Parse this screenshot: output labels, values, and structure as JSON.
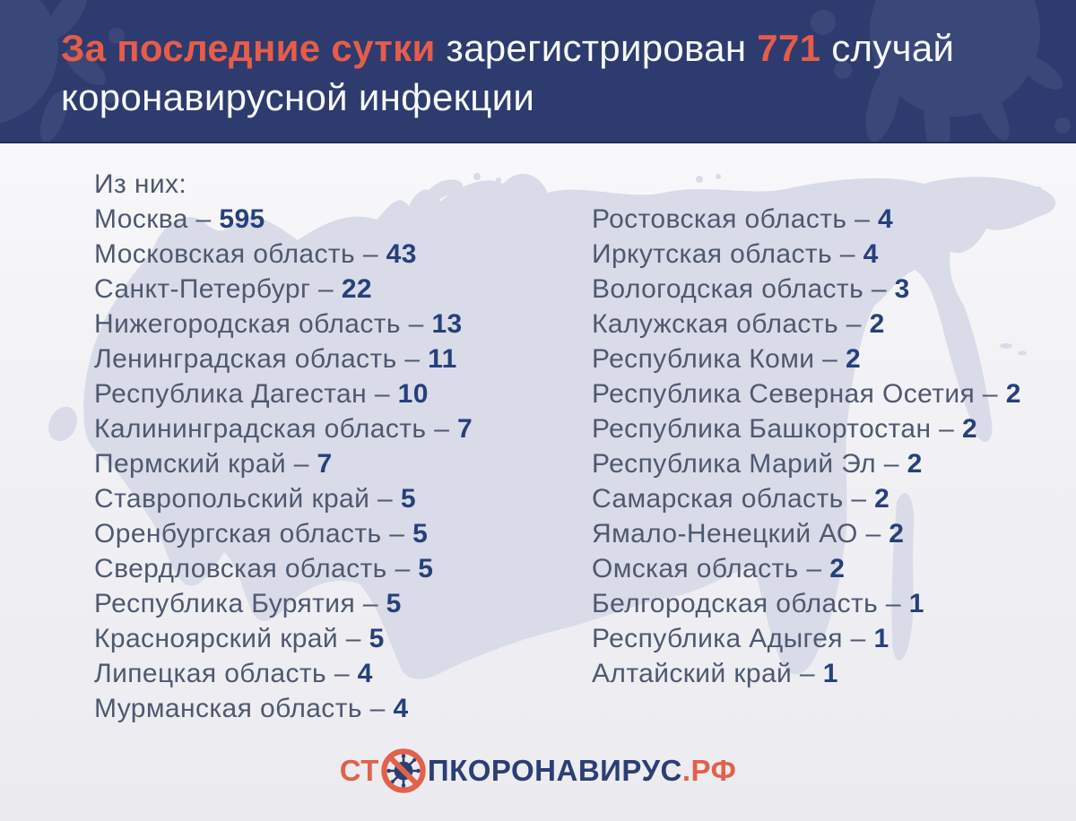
{
  "header": {
    "accent": "За последние сутки",
    "mid": " зарегистрирован ",
    "count": "771",
    "tail": " случай",
    "line2": "коронавирусной инфекции"
  },
  "list": {
    "intro": "Из них:",
    "separator": "–",
    "left": [
      {
        "region": "Москва",
        "value": "595"
      },
      {
        "region": "Московская область",
        "value": "43"
      },
      {
        "region": "Санкт-Петербург",
        "value": "22"
      },
      {
        "region": "Нижегородская область",
        "value": "13"
      },
      {
        "region": "Ленинградская область",
        "value": "11"
      },
      {
        "region": "Республика Дагестан",
        "value": "10"
      },
      {
        "region": "Калининградская область",
        "value": "7"
      },
      {
        "region": "Пермский край",
        "value": "7"
      },
      {
        "region": "Ставропольский край",
        "value": "5"
      },
      {
        "region": "Оренбургская область",
        "value": "5"
      },
      {
        "region": "Свердловская область",
        "value": "5"
      },
      {
        "region": "Республика Бурятия",
        "value": "5"
      },
      {
        "region": "Красноярский край",
        "value": "5"
      },
      {
        "region": "Липецкая область",
        "value": "4"
      },
      {
        "region": "Мурманская область",
        "value": "4"
      }
    ],
    "right": [
      {
        "region": "Ростовская область",
        "value": "4"
      },
      {
        "region": "Иркутская область",
        "value": "4"
      },
      {
        "region": "Вологодская область",
        "value": "3"
      },
      {
        "region": "Калужская область",
        "value": "2"
      },
      {
        "region": "Республика Коми",
        "value": "2"
      },
      {
        "region": "Республика Северная Осетия",
        "value": "2"
      },
      {
        "region": "Республика Башкортостан",
        "value": "2"
      },
      {
        "region": "Республика Марий Эл",
        "value": "2"
      },
      {
        "region": "Самарская область",
        "value": "2"
      },
      {
        "region": "Ямало-Ненецкий АО",
        "value": "2"
      },
      {
        "region": "Омская область",
        "value": "2"
      },
      {
        "region": "Белгородская область",
        "value": "1"
      },
      {
        "region": "Республика Адыгея",
        "value": "1"
      },
      {
        "region": "Алтайский край",
        "value": "1"
      }
    ]
  },
  "footer": {
    "logo_prefix": "СТ",
    "logo_middle": "ПКОРОНАВИРУС",
    "logo_suffix": ".РФ"
  },
  "colors": {
    "header_bg": "#2e3b6e",
    "header_blob": "#3a4779",
    "accent_red": "#e55d4a",
    "title_white": "#f8f9fd",
    "map_fill": "#dadbe8",
    "region_text": "#4e5970",
    "value_navy": "#26407b",
    "logo_navy": "#2c3e74",
    "logo_red": "#e2614b"
  },
  "chart_data": {
    "type": "table",
    "title": "За последние сутки зарегистрирован 771 случай коронавирусной инфекции",
    "total_new_cases": 771,
    "categories": [
      "Москва",
      "Московская область",
      "Санкт-Петербург",
      "Нижегородская область",
      "Ленинградская область",
      "Республика Дагестан",
      "Калининградская область",
      "Пермский край",
      "Ставропольский край",
      "Оренбургская область",
      "Свердловская область",
      "Республика Бурятия",
      "Красноярский край",
      "Липецкая область",
      "Мурманская область",
      "Ростовская область",
      "Иркутская область",
      "Вологодская область",
      "Калужская область",
      "Республика Коми",
      "Республика Северная Осетия",
      "Республика Башкортостан",
      "Республика Марий Эл",
      "Самарская область",
      "Ямало-Ненецкий АО",
      "Омская область",
      "Белгородская область",
      "Республика Адыгея",
      "Алтайский край"
    ],
    "values": [
      595,
      43,
      22,
      13,
      11,
      10,
      7,
      7,
      5,
      5,
      5,
      5,
      5,
      4,
      4,
      4,
      4,
      3,
      2,
      2,
      2,
      2,
      2,
      2,
      2,
      2,
      1,
      1,
      1
    ],
    "legend": "none",
    "layout": "two-column list over map of Russia"
  }
}
